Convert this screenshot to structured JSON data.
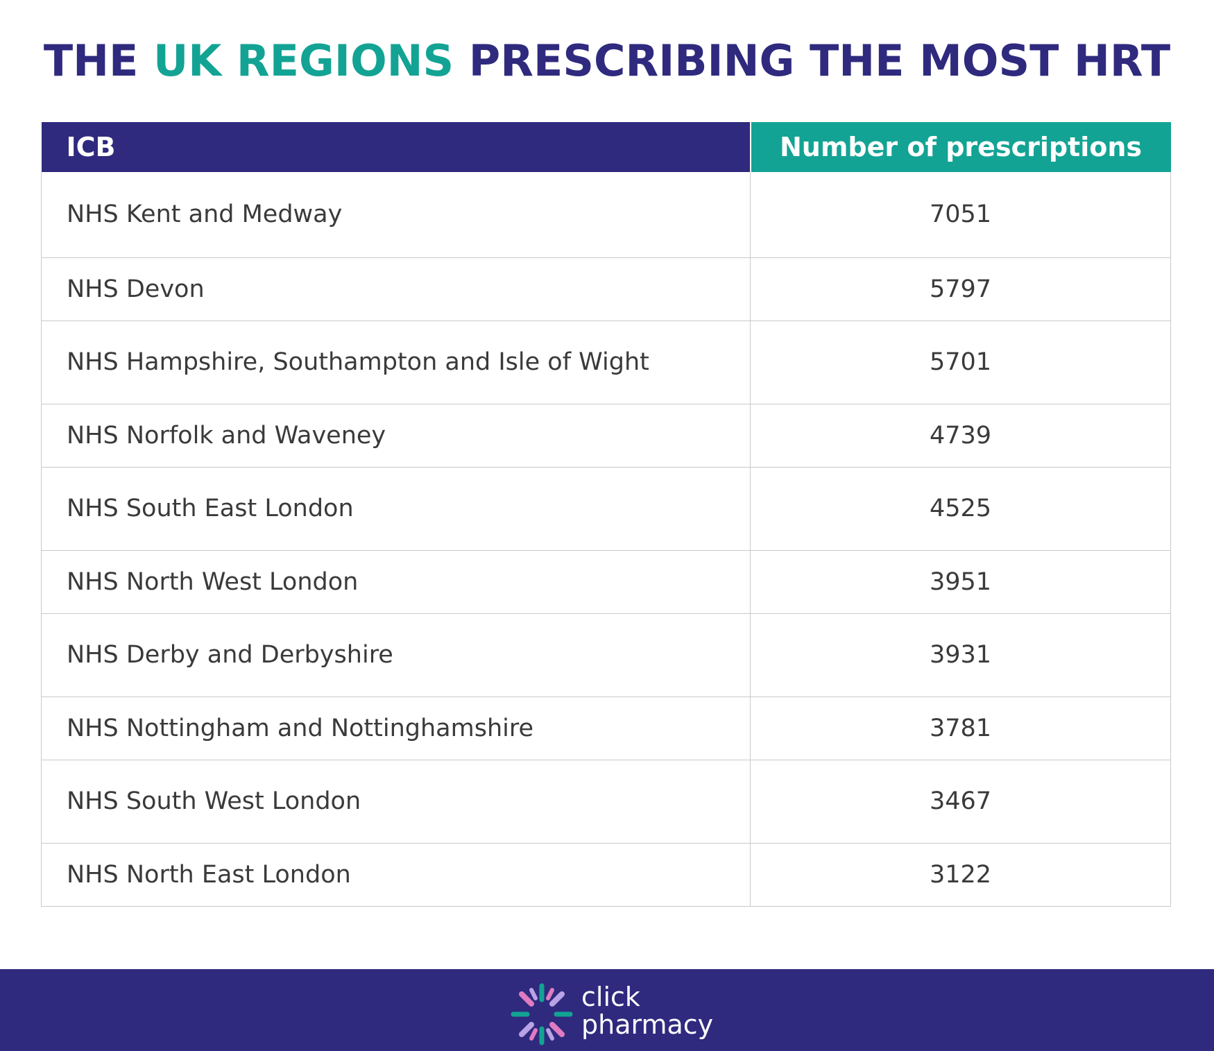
{
  "title": {
    "part1": "THE ",
    "accent": "UK REGIONS",
    "part2": " PRESCRIBING THE MOST HRT"
  },
  "colors": {
    "primary": "#2f2a7e",
    "accent": "#13a394",
    "logo_pink": "#e07bc1",
    "logo_green": "#13a394",
    "logo_lilac": "#b9a2e6"
  },
  "chart_data": {
    "type": "table",
    "title": "THE UK REGIONS PRESCRIBING THE MOST HRT",
    "columns": [
      "ICB",
      "Number of prescriptions"
    ],
    "rows": [
      [
        "NHS Kent and Medway",
        "7051"
      ],
      [
        "NHS Devon",
        "5797"
      ],
      [
        "NHS Hampshire, Southampton and Isle of Wight",
        "5701"
      ],
      [
        "NHS Norfolk and Waveney",
        "4739"
      ],
      [
        "NHS South East London",
        "4525"
      ],
      [
        "NHS North West London",
        "3951"
      ],
      [
        "NHS Derby and Derbyshire",
        "3931"
      ],
      [
        "NHS Nottingham and Nottinghamshire",
        "3781"
      ],
      [
        "NHS South West London",
        "3467"
      ],
      [
        "NHS North East London",
        "3122"
      ]
    ]
  },
  "footer": {
    "brand_line1": "click",
    "brand_line2": "pharmacy",
    "logo_icon": "click-pharmacy-logo-icon"
  }
}
